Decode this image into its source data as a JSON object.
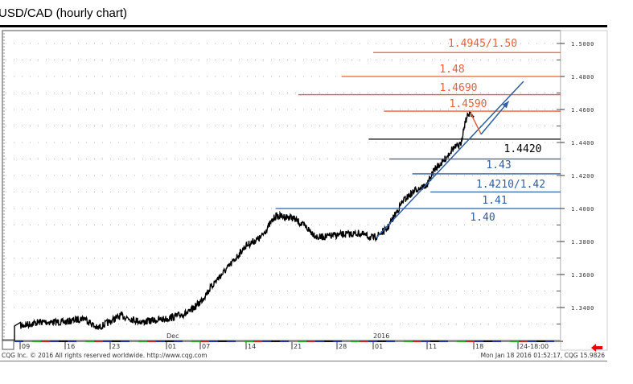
{
  "chart_data": {
    "type": "line",
    "title": "USD/CAD (hourly chart)",
    "xlabel": "",
    "ylabel": "",
    "ylim": [
      1.322,
      1.507
    ],
    "grid": true,
    "yaxis_side": "right",
    "yticks": [
      "1.5000",
      "1.4800",
      "1.4600",
      "1.4400",
      "1.4200",
      "1.4000",
      "1.3800",
      "1.3600",
      "1.3400"
    ],
    "xticks": [
      {
        "date": "2015-11-09",
        "label": "09"
      },
      {
        "date": "2015-11-16",
        "label": "16"
      },
      {
        "date": "2015-11-23",
        "label": "23"
      },
      {
        "date": "2015-12-01",
        "label": "01",
        "month": "Dec"
      },
      {
        "date": "2015-12-07",
        "label": "07"
      },
      {
        "date": "2015-12-14",
        "label": "14"
      },
      {
        "date": "2015-12-21",
        "label": "21"
      },
      {
        "date": "2015-12-28",
        "label": "28"
      },
      {
        "date": "2016-01-01",
        "label": "01",
        "month": "2016"
      },
      {
        "date": "2016-01-11",
        "label": "11"
      },
      {
        "date": "2016-01-18",
        "label": "18"
      },
      {
        "date": "2016-01-24",
        "label": "24-18:00"
      }
    ],
    "series": [
      {
        "color": "#000000",
        "points": [
          [
            "2015-11-09T00:00",
            1.3288
          ],
          [
            "2015-11-12T00:00",
            1.3312
          ],
          [
            "2015-11-16T00:00",
            1.3312
          ],
          [
            "2015-11-19T00:00",
            1.3337
          ],
          [
            "2015-11-21T00:00",
            1.3273
          ],
          [
            "2015-11-24T12:00",
            1.3351
          ],
          [
            "2015-11-27T12:00",
            1.3312
          ],
          [
            "2015-12-01T00:00",
            1.3332
          ],
          [
            "2015-12-05T00:00",
            1.337
          ],
          [
            "2015-12-07T00:00",
            1.3434
          ],
          [
            "2015-12-09T06:00",
            1.3556
          ],
          [
            "2015-12-11T12:00",
            1.3654
          ],
          [
            "2015-12-14T00:00",
            1.3776
          ],
          [
            "2015-12-16T06:00",
            1.3824
          ],
          [
            "2015-12-18T12:00",
            1.3956
          ],
          [
            "2015-12-21T00:00",
            1.3946
          ],
          [
            "2015-12-23T03:00",
            1.3888
          ],
          [
            "2015-12-25T00:00",
            1.3824
          ],
          [
            "2015-12-28T00:00",
            1.3839
          ],
          [
            "2015-12-30T12:00",
            1.3849
          ],
          [
            "2016-01-01T00:00",
            1.382
          ],
          [
            "2016-01-03T12:00",
            1.3873
          ],
          [
            "2016-01-06T12:00",
            1.4044
          ],
          [
            "2016-01-09T00:00",
            1.4117
          ],
          [
            "2016-01-11T00:00",
            1.4141
          ],
          [
            "2016-01-12T03:00",
            1.4239
          ],
          [
            "2016-01-13T12:00",
            1.4288
          ],
          [
            "2016-01-14T18:00",
            1.4361
          ],
          [
            "2016-01-16T00:00",
            1.4385
          ],
          [
            "2016-01-16T18:00",
            1.4532
          ],
          [
            "2016-01-17T12:00",
            1.459
          ],
          [
            "2016-01-18T00:00",
            1.4541
          ]
        ]
      }
    ],
    "levels": [
      {
        "value": 1.4945,
        "label": "1.4945/1.50",
        "color": "#e8603c",
        "from": "2016-01-01T00:00"
      },
      {
        "value": 1.48,
        "label": "1.48",
        "color": "#e8603c",
        "from": "2015-12-28T12:00"
      },
      {
        "value": 1.469,
        "label": "1.4690",
        "color": "#e8603c",
        "from": "2015-12-22T00:00"
      },
      {
        "value": 1.459,
        "label": "1.4590",
        "color": "#e8603c",
        "from": "2016-01-03T00:00"
      },
      {
        "value": 1.442,
        "label": "1.4420",
        "color": "#000000",
        "from": "2015-12-31T12:00"
      },
      {
        "value": 1.43,
        "label": "1.43",
        "color": "#2e5fa3",
        "from": "2016-01-04T00:00"
      },
      {
        "value": 1.421,
        "label": "1.4210/1.42",
        "color": "#2e5fa3",
        "from": "2016-01-08T06:00"
      },
      {
        "value": 1.41,
        "label": "1.41",
        "color": "#2e5fa3",
        "from": "2016-01-11T12:00"
      },
      {
        "value": 1.4,
        "label": "1.40",
        "color": "#2e5fa3",
        "from": "2015-12-18T12:00"
      }
    ],
    "trendline": {
      "color": "#2e5fa3",
      "from": [
        "2016-01-01T12:00",
        1.382
      ],
      "to": [
        "2016-01-24T18:00",
        1.477
      ]
    },
    "projection": {
      "down": {
        "color": "#e8603c",
        "from": [
          "2016-01-17T12:00",
          1.458
        ],
        "to": [
          "2016-01-19T00:00",
          1.445
        ]
      },
      "up": {
        "color": "#2e5fa3",
        "from": [
          "2016-01-19T00:00",
          1.445
        ],
        "to": [
          "2016-01-22T18:00",
          1.465
        ]
      }
    }
  },
  "footer": {
    "left": "CQG Inc. © 2016 All rights reserved worldwide. http://www.cqg.com",
    "right": "Mon Jan 18 2016 01:52:17, CQG 15.9826"
  },
  "icons": {
    "scroll": "red-left-arrow-icon"
  }
}
